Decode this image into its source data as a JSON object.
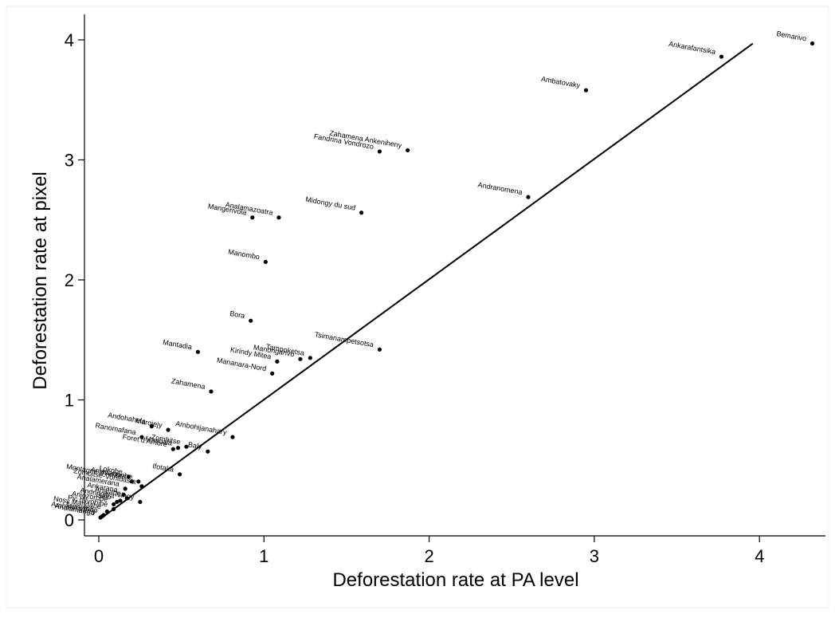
{
  "chart_data": {
    "type": "scatter",
    "title": "",
    "xlabel": "Deforestation rate at PA level",
    "ylabel": "Deforestation rate at pixel",
    "xlim": [
      -0.08,
      4.4
    ],
    "ylim": [
      -0.1,
      4.2
    ],
    "x_ticks": [
      "0",
      "1",
      "2",
      "3",
      "4"
    ],
    "y_ticks": [
      "0",
      "1",
      "2",
      "3",
      "4"
    ],
    "grid": false,
    "legend": "none",
    "fit_line": {
      "x": [
        0.02,
        3.96
      ],
      "y": [
        0.02,
        3.97
      ]
    },
    "points": [
      {
        "label": "Bemarivo",
        "x": 4.32,
        "y": 3.97
      },
      {
        "label": "Ankarafantsika",
        "x": 3.77,
        "y": 3.86
      },
      {
        "label": "Ambatovaky",
        "x": 2.95,
        "y": 3.58
      },
      {
        "label": "Zahamena Ankeniheny",
        "x": 1.87,
        "y": 3.08
      },
      {
        "label": "Fandrina Vondrozo",
        "x": 1.7,
        "y": 3.07
      },
      {
        "label": "Andranomena",
        "x": 2.6,
        "y": 2.69
      },
      {
        "label": "Midongy du sud",
        "x": 1.59,
        "y": 2.56
      },
      {
        "label": "Analamazoatra",
        "x": 1.09,
        "y": 2.52
      },
      {
        "label": "Mangerivola",
        "x": 0.93,
        "y": 2.52
      },
      {
        "label": "Manombo",
        "x": 1.01,
        "y": 2.15
      },
      {
        "label": "Bora",
        "x": 0.92,
        "y": 1.66
      },
      {
        "label": "Tsimanampetsotsa",
        "x": 1.7,
        "y": 1.42
      },
      {
        "label": "Mantadia",
        "x": 0.6,
        "y": 1.4
      },
      {
        "label": "Tampoketsa",
        "x": 1.28,
        "y": 1.35
      },
      {
        "label": "Manongarivo",
        "x": 1.22,
        "y": 1.34
      },
      {
        "label": "Kirindy Mitea",
        "x": 1.08,
        "y": 1.32
      },
      {
        "label": "Mananara-Nord",
        "x": 1.05,
        "y": 1.22
      },
      {
        "label": "Zahamena",
        "x": 0.68,
        "y": 1.07
      },
      {
        "label": "Andohahela",
        "x": 0.32,
        "y": 0.78
      },
      {
        "label": "Marojejy",
        "x": 0.42,
        "y": 0.75
      },
      {
        "label": "Ambohijanahary",
        "x": 0.81,
        "y": 0.69
      },
      {
        "label": "Ranomafana",
        "x": 0.26,
        "y": 0.69
      },
      {
        "label": "Zombitse",
        "x": 0.53,
        "y": 0.61
      },
      {
        "label": "Masoala",
        "x": 0.48,
        "y": 0.6
      },
      {
        "label": "Baly",
        "x": 0.66,
        "y": 0.57
      },
      {
        "label": "Foret d'Ambre",
        "x": 0.45,
        "y": 0.59
      },
      {
        "label": "Ifotaka",
        "x": 0.49,
        "y": 0.38
      },
      {
        "label": "Lokobe",
        "x": 0.18,
        "y": 0.36
      },
      {
        "label": "Anjanaharibe",
        "x": 0.24,
        "y": 0.32
      },
      {
        "label": "Montagne d'Ambre",
        "x": 0.2,
        "y": 0.32
      },
      {
        "label": "Zombitse-Vohibasia",
        "x": 0.26,
        "y": 0.28
      },
      {
        "label": "Analamerana",
        "x": 0.16,
        "y": 0.26
      },
      {
        "label": "Ankarana",
        "x": 0.15,
        "y": 0.21
      },
      {
        "label": "Analabe",
        "x": 0.17,
        "y": 0.18
      },
      {
        "label": "Andringitra",
        "x": 0.13,
        "y": 0.16
      },
      {
        "label": "Isalo",
        "x": 0.11,
        "y": 0.15
      },
      {
        "label": "Anjozorobe",
        "x": 0.09,
        "y": 0.13
      },
      {
        "label": "Tsingy",
        "x": 0.25,
        "y": 0.15
      },
      {
        "label": "Pic d'Ivohibe",
        "x": 0.09,
        "y": 0.09
      },
      {
        "label": "Nosy Mangabe",
        "x": 0.05,
        "y": 0.07
      },
      {
        "label": "Tsimembo",
        "x": 0.03,
        "y": 0.04
      },
      {
        "label": "Ambohitantely",
        "x": 0.02,
        "y": 0.03
      },
      {
        "label": "Analamanga",
        "x": 0.01,
        "y": 0.02
      }
    ]
  }
}
